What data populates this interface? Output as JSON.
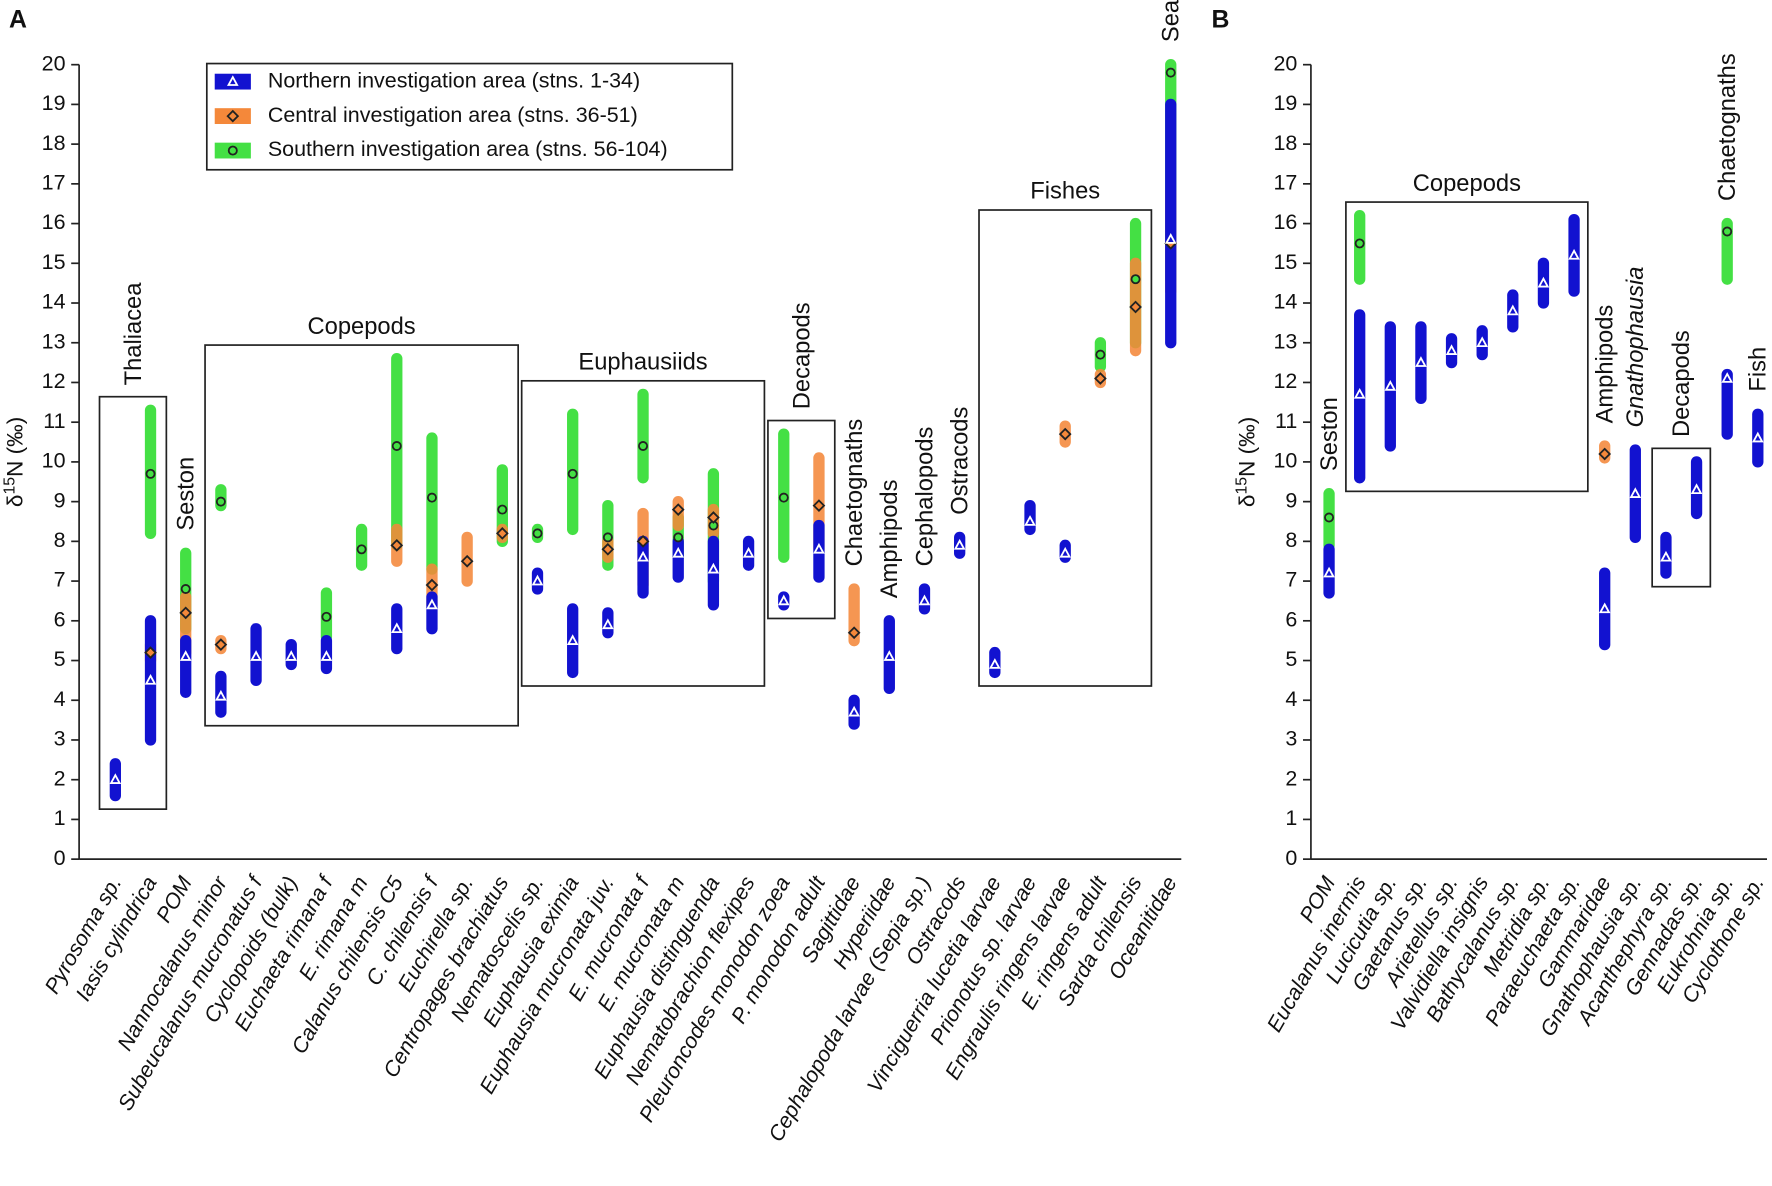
{
  "chart_data": [
    {
      "type": "range",
      "panel": "A",
      "y_label": [
        "δ",
        "15",
        "N (‰)"
      ],
      "ylim": [
        0,
        20
      ],
      "yticks": [
        0,
        1,
        2,
        3,
        4,
        5,
        6,
        7,
        8,
        9,
        10,
        11,
        12,
        13,
        14,
        15,
        16,
        17,
        18,
        19,
        20
      ],
      "legend": "upper-left",
      "categories": [
        "Pyrosoma sp.",
        "Iasis cylindrica",
        "POM",
        "Nannocalanus minor",
        "Subeucalanus mucronatus f",
        "Cyclopoids (bulk)",
        "Euchaeta rimana f",
        "E. rimana m",
        "Calanus chilensis C5",
        "C. chilensis f",
        "Euchirella sp.",
        "Centropages brachiatus",
        "Nematoscelis sp.",
        "Euphausia eximia",
        "Euphausia mucronata juv.",
        "E. mucronata f",
        "E. mucronata m",
        "Euphausia distinguenda",
        "Nematobrachion flexipes",
        "Pleuroncodes monodon zoea",
        "P. monodon adult",
        "Sagittidae",
        "Hyperiidae",
        "Cephalopoda larvae (Sepia sp.)",
        "Ostracods",
        "Vinciguerria lucetia larvae",
        "Prionotus sp. larvae",
        "Engraulis ringens larvae",
        "E. ringens adult",
        "Sarda chilensis",
        "Oceanitidae"
      ],
      "series": [
        {
          "name": "Southern investigation area (stns. 56-104)",
          "color": "#44e044",
          "marker": "circle",
          "min": [
            null,
            8.2,
            5.8,
            8.9,
            null,
            null,
            5.6,
            7.4,
            7.9,
            7.3,
            null,
            8.0,
            8.1,
            8.3,
            7.4,
            9.6,
            7.6,
            7.0,
            null,
            7.6,
            null,
            null,
            null,
            null,
            null,
            null,
            null,
            null,
            12.4,
            13.0,
            14.6
          ],
          "max": [
            null,
            11.3,
            7.7,
            9.3,
            null,
            null,
            6.7,
            8.3,
            12.6,
            10.6,
            null,
            9.8,
            8.3,
            11.2,
            8.9,
            11.7,
            8.6,
            9.7,
            null,
            10.7,
            null,
            null,
            null,
            null,
            null,
            null,
            null,
            null,
            13.0,
            16.0,
            20.0
          ],
          "mean": [
            null,
            9.7,
            6.8,
            9.0,
            null,
            null,
            6.1,
            7.8,
            10.4,
            9.1,
            null,
            8.8,
            8.2,
            9.7,
            8.1,
            10.4,
            8.1,
            8.4,
            null,
            9.1,
            null,
            null,
            null,
            null,
            null,
            null,
            null,
            null,
            12.7,
            14.6,
            19.8
          ]
        },
        {
          "name": "Central investigation area (stns. 36-51)",
          "color": "#f4883a",
          "marker": "diamond",
          "min": [
            null,
            5.0,
            5.2,
            5.3,
            null,
            null,
            null,
            null,
            7.5,
            6.4,
            7.0,
            8.1,
            null,
            null,
            7.6,
            6.9,
            8.4,
            8.2,
            null,
            null,
            7.8,
            5.5,
            null,
            null,
            null,
            null,
            null,
            10.5,
            12.0,
            12.8,
            14.3
          ],
          "max": [
            null,
            5.4,
            6.6,
            5.5,
            null,
            null,
            null,
            null,
            8.3,
            7.3,
            8.1,
            8.3,
            null,
            null,
            8.0,
            8.7,
            9.0,
            8.8,
            null,
            null,
            10.1,
            6.8,
            null,
            null,
            null,
            null,
            null,
            10.9,
            12.2,
            15.0,
            16.8
          ],
          "mean": [
            null,
            5.2,
            6.2,
            5.4,
            null,
            null,
            null,
            null,
            7.9,
            6.9,
            7.5,
            8.2,
            null,
            null,
            7.8,
            8.0,
            8.8,
            8.6,
            null,
            null,
            8.9,
            5.7,
            null,
            null,
            null,
            null,
            null,
            10.7,
            12.1,
            13.9,
            15.5
          ]
        },
        {
          "name": "Northern investigation area (stns. 1-34)",
          "color": "#1212d0",
          "marker": "triangle",
          "min": [
            1.6,
            3.0,
            4.2,
            3.7,
            4.5,
            4.9,
            4.8,
            null,
            5.3,
            5.8,
            null,
            null,
            6.8,
            4.7,
            5.7,
            6.7,
            7.1,
            6.4,
            7.4,
            6.4,
            7.1,
            3.4,
            4.3,
            6.3,
            7.7,
            4.7,
            8.3,
            7.6,
            null,
            null,
            13.0
          ],
          "max": [
            2.4,
            6.0,
            5.5,
            4.6,
            5.8,
            5.4,
            5.5,
            null,
            6.3,
            6.6,
            null,
            null,
            7.2,
            6.3,
            6.2,
            8.0,
            8.0,
            8.0,
            8.0,
            6.6,
            8.4,
            4.0,
            6.0,
            6.8,
            8.1,
            5.2,
            8.9,
            7.9,
            null,
            null,
            19.0
          ],
          "mean": [
            2.0,
            4.5,
            5.1,
            4.1,
            5.1,
            5.1,
            5.1,
            null,
            5.8,
            6.4,
            null,
            null,
            7.0,
            5.5,
            5.9,
            7.6,
            7.7,
            7.3,
            7.7,
            6.5,
            7.8,
            3.7,
            5.1,
            6.5,
            7.9,
            4.9,
            8.5,
            7.7,
            null,
            null,
            15.6
          ]
        }
      ],
      "groups": [
        {
          "label": "Thaliacea",
          "first": 0,
          "last": 1,
          "box": true,
          "vertical": true
        },
        {
          "label": "Seston",
          "first": 2,
          "last": 2,
          "box": false,
          "vertical": true
        },
        {
          "label": "Copepods",
          "first": 3,
          "last": 11,
          "box": true,
          "vertical": false
        },
        {
          "label": "Euphausiids",
          "first": 12,
          "last": 18,
          "box": true,
          "vertical": false
        },
        {
          "label": "Decapods",
          "first": 19,
          "last": 20,
          "box": true,
          "vertical": true
        },
        {
          "label": "Chaetognaths",
          "first": 21,
          "last": 21,
          "box": false,
          "vertical": true
        },
        {
          "label": "Amphipods",
          "first": 22,
          "last": 22,
          "box": false,
          "vertical": true
        },
        {
          "label": "Cephalopods",
          "first": 23,
          "last": 23,
          "box": false,
          "vertical": true
        },
        {
          "label": "Ostracods",
          "first": 24,
          "last": 24,
          "box": false,
          "vertical": true
        },
        {
          "label": "Fishes",
          "first": 25,
          "last": 29,
          "box": true,
          "vertical": false
        },
        {
          "label": "Seabirds",
          "first": 30,
          "last": 30,
          "box": false,
          "vertical": true
        }
      ]
    },
    {
      "type": "range",
      "panel": "B",
      "y_label": [
        "δ",
        "15",
        "N (‰)"
      ],
      "ylim": [
        0,
        20
      ],
      "yticks": [
        0,
        1,
        2,
        3,
        4,
        5,
        6,
        7,
        8,
        9,
        10,
        11,
        12,
        13,
        14,
        15,
        16,
        17,
        18,
        19,
        20
      ],
      "categories": [
        "POM",
        "Eucalanus inermis",
        "Lucicutia sp.",
        "Gaetanus sp.",
        "Arietellus sp.",
        "Valvidiella insignis",
        "Bathycalanus sp.",
        "Metridia sp.",
        "Paraeuchaeta sp.",
        "Gammaridae",
        "Gnathophausia sp.",
        "Acanthephyra sp.",
        "Gennadas sp.",
        "Eukrohnia sp.",
        "Cyclothone sp."
      ],
      "series": [
        {
          "color": "#44e044",
          "marker": "circle",
          "min": [
            7.9,
            14.6,
            null,
            null,
            null,
            null,
            null,
            null,
            null,
            null,
            null,
            null,
            null,
            14.6,
            null
          ],
          "max": [
            9.2,
            16.2,
            null,
            null,
            null,
            null,
            null,
            null,
            null,
            null,
            null,
            null,
            null,
            16.0,
            null
          ],
          "mean": [
            8.6,
            15.5,
            null,
            null,
            null,
            null,
            null,
            null,
            null,
            null,
            null,
            null,
            null,
            15.8,
            null
          ]
        },
        {
          "color": "#f4883a",
          "marker": "diamond",
          "min": [
            null,
            null,
            null,
            null,
            null,
            null,
            null,
            null,
            null,
            10.1,
            null,
            null,
            null,
            null,
            null
          ],
          "max": [
            null,
            null,
            null,
            null,
            null,
            null,
            null,
            null,
            null,
            10.4,
            null,
            null,
            null,
            null,
            null
          ],
          "mean": [
            null,
            null,
            null,
            null,
            null,
            null,
            null,
            null,
            null,
            10.2,
            null,
            null,
            null,
            null,
            null
          ]
        },
        {
          "color": "#1212d0",
          "marker": "triangle",
          "min": [
            6.7,
            9.6,
            10.4,
            11.6,
            12.5,
            12.7,
            13.4,
            14.0,
            14.3,
            5.4,
            8.1,
            7.2,
            8.7,
            10.7,
            10.0
          ],
          "max": [
            7.8,
            13.7,
            13.4,
            13.4,
            13.1,
            13.3,
            14.2,
            15.0,
            16.1,
            7.2,
            10.3,
            8.1,
            10.0,
            12.2,
            11.2
          ],
          "mean": [
            7.2,
            11.7,
            11.9,
            12.5,
            12.8,
            13.0,
            13.8,
            14.5,
            15.2,
            6.3,
            9.2,
            7.6,
            9.3,
            12.1,
            10.6
          ]
        }
      ],
      "groups": [
        {
          "label": "Seston",
          "first": 0,
          "last": 0,
          "box": false,
          "vertical": true
        },
        {
          "label": "Copepods",
          "first": 1,
          "last": 8,
          "box": true,
          "vertical": false
        },
        {
          "label": "Amphipods",
          "first": 9,
          "last": 9,
          "box": false,
          "vertical": true
        },
        {
          "label": "Gnathophausia",
          "first": 10,
          "last": 10,
          "box": false,
          "vertical": true
        },
        {
          "label": "Decapods",
          "first": 11,
          "last": 12,
          "box": true,
          "vertical": true
        },
        {
          "label": "Chaetognaths",
          "first": 13,
          "last": 13,
          "box": false,
          "vertical": true
        },
        {
          "label": "Fish",
          "first": 14,
          "last": 14,
          "box": false,
          "vertical": true
        }
      ]
    }
  ]
}
